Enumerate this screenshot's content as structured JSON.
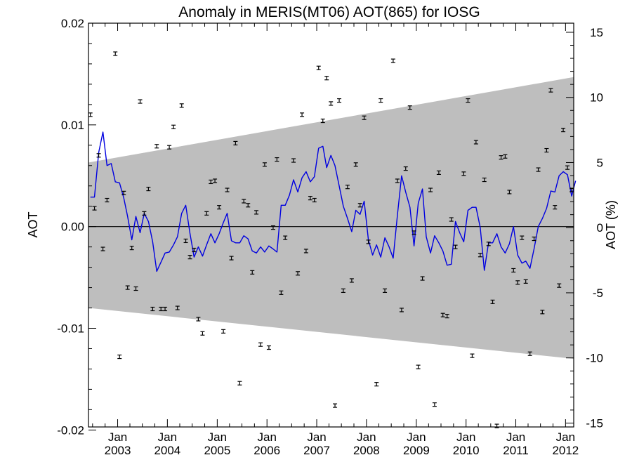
{
  "chart_data": {
    "type": "scatter",
    "title": "Anomaly in MERIS(MT06) AOT(865) for IOSG",
    "ylabel": "AOT",
    "ylabel_right": "AOT (%)",
    "xlim": [
      "2002-06-01",
      "2012-03-01"
    ],
    "ylim": [
      -0.0197,
      0.02
    ],
    "ylim_right": [
      -15.3,
      15.7
    ],
    "x_ticks": [
      {
        "date": "2003-01",
        "month": "Jan",
        "year": "2003"
      },
      {
        "date": "2004-01",
        "month": "Jan",
        "year": "2004"
      },
      {
        "date": "2005-01",
        "month": "Jan",
        "year": "2005"
      },
      {
        "date": "2006-01",
        "month": "Jan",
        "year": "2006"
      },
      {
        "date": "2007-01",
        "month": "Jan",
        "year": "2007"
      },
      {
        "date": "2008-01",
        "month": "Jan",
        "year": "2008"
      },
      {
        "date": "2009-01",
        "month": "Jan",
        "year": "2009"
      },
      {
        "date": "2010-01",
        "month": "Jan",
        "year": "2010"
      },
      {
        "date": "2011-01",
        "month": "Jan",
        "year": "2011"
      },
      {
        "date": "2012-01",
        "month": "Jan",
        "year": "2012"
      }
    ],
    "y_ticks": [
      {
        "value": 0.02,
        "label": "0.02"
      },
      {
        "value": 0.01,
        "label": "0.01"
      },
      {
        "value": 0.0,
        "label": "0.00"
      },
      {
        "value": -0.01,
        "label": "-0.01"
      },
      {
        "value": -0.02,
        "label": "-0.02"
      }
    ],
    "y_ticks_right": [
      {
        "value": 15,
        "label": "15"
      },
      {
        "value": 10,
        "label": "10"
      },
      {
        "value": 5,
        "label": "5"
      },
      {
        "value": 0,
        "label": "0"
      },
      {
        "value": -5,
        "label": "-5"
      },
      {
        "value": -10,
        "label": "-10"
      },
      {
        "value": -15,
        "label": "-15"
      }
    ],
    "band": {
      "x": [
        "2002-06-01",
        "2012-03-01"
      ],
      "upper": [
        0.0063,
        0.0147
      ],
      "lower": [
        -0.008,
        -0.013
      ],
      "color": "#bebebe"
    },
    "zero_line": true,
    "points": [
      {
        "x": "2002-06",
        "y": 0.011
      },
      {
        "x": "2002-07",
        "y": 0.0018
      },
      {
        "x": "2002-08",
        "y": 0.007
      },
      {
        "x": "2002-09",
        "y": -0.0022
      },
      {
        "x": "2002-10",
        "y": 0.0026
      },
      {
        "x": "2002-12",
        "y": 0.017
      },
      {
        "x": "2003-01",
        "y": -0.0128
      },
      {
        "x": "2003-02",
        "y": 0.0033
      },
      {
        "x": "2003-03",
        "y": -0.006
      },
      {
        "x": "2003-04",
        "y": -0.0021
      },
      {
        "x": "2003-05",
        "y": -0.0061
      },
      {
        "x": "2003-06",
        "y": 0.0123
      },
      {
        "x": "2003-07",
        "y": 0.0013
      },
      {
        "x": "2003-08",
        "y": 0.0037
      },
      {
        "x": "2003-09",
        "y": -0.0081
      },
      {
        "x": "2003-10",
        "y": 0.0079
      },
      {
        "x": "2003-11",
        "y": -0.0081
      },
      {
        "x": "2003-12",
        "y": -0.0081
      },
      {
        "x": "2004-01",
        "y": 0.0078
      },
      {
        "x": "2004-02",
        "y": 0.0098
      },
      {
        "x": "2004-03",
        "y": -0.008
      },
      {
        "x": "2004-04",
        "y": 0.0119
      },
      {
        "x": "2004-05",
        "y": -0.0014
      },
      {
        "x": "2004-06",
        "y": -0.003
      },
      {
        "x": "2004-07",
        "y": -0.0023
      },
      {
        "x": "2004-08",
        "y": -0.0091
      },
      {
        "x": "2004-09",
        "y": -0.0105
      },
      {
        "x": "2004-10",
        "y": 0.0013
      },
      {
        "x": "2004-11",
        "y": 0.0044
      },
      {
        "x": "2004-12",
        "y": 0.0045
      },
      {
        "x": "2005-01",
        "y": 0.0019
      },
      {
        "x": "2005-02",
        "y": -0.0103
      },
      {
        "x": "2005-03",
        "y": 0.0036
      },
      {
        "x": "2005-04",
        "y": -0.0031
      },
      {
        "x": "2005-05",
        "y": 0.0082
      },
      {
        "x": "2005-06",
        "y": -0.0154
      },
      {
        "x": "2005-07",
        "y": 0.0025
      },
      {
        "x": "2005-08",
        "y": 0.0021
      },
      {
        "x": "2005-09",
        "y": -0.0045
      },
      {
        "x": "2005-10",
        "y": 0.0014
      },
      {
        "x": "2005-11",
        "y": -0.0116
      },
      {
        "x": "2005-12",
        "y": 0.0061
      },
      {
        "x": "2006-01",
        "y": -0.0119
      },
      {
        "x": "2006-02",
        "y": -0.0001
      },
      {
        "x": "2006-03",
        "y": 0.0066
      },
      {
        "x": "2006-04",
        "y": -0.0065
      },
      {
        "x": "2006-05",
        "y": -0.0011
      },
      {
        "x": "2006-07",
        "y": 0.0065
      },
      {
        "x": "2006-08",
        "y": -0.0046
      },
      {
        "x": "2006-09",
        "y": 0.011
      },
      {
        "x": "2006-10",
        "y": -0.0024
      },
      {
        "x": "2006-11",
        "y": 0.0028
      },
      {
        "x": "2006-12",
        "y": 0.0026
      },
      {
        "x": "2007-01",
        "y": 0.0156
      },
      {
        "x": "2007-02",
        "y": 0.0104
      },
      {
        "x": "2007-03",
        "y": 0.0146
      },
      {
        "x": "2007-04",
        "y": 0.0121
      },
      {
        "x": "2007-05",
        "y": -0.0176
      },
      {
        "x": "2007-06",
        "y": 0.0124
      },
      {
        "x": "2007-07",
        "y": -0.0063
      },
      {
        "x": "2007-08",
        "y": 0.0039
      },
      {
        "x": "2007-09",
        "y": -0.0053
      },
      {
        "x": "2007-10",
        "y": 0.0061
      },
      {
        "x": "2007-11",
        "y": 0.0021
      },
      {
        "x": "2007-12",
        "y": 0.0107
      },
      {
        "x": "2008-01",
        "y": -0.0015
      },
      {
        "x": "2008-03",
        "y": -0.0155
      },
      {
        "x": "2008-04",
        "y": 0.0124
      },
      {
        "x": "2008-05",
        "y": -0.0063
      },
      {
        "x": "2008-07",
        "y": 0.0163
      },
      {
        "x": "2008-08",
        "y": 0.0045
      },
      {
        "x": "2008-09",
        "y": -0.0082
      },
      {
        "x": "2008-10",
        "y": 0.0057
      },
      {
        "x": "2008-11",
        "y": 0.0117
      },
      {
        "x": "2008-12",
        "y": -0.0006
      },
      {
        "x": "2009-01",
        "y": -0.0138
      },
      {
        "x": "2009-02",
        "y": -0.0051
      },
      {
        "x": "2009-04",
        "y": 0.0036
      },
      {
        "x": "2009-05",
        "y": -0.0175
      },
      {
        "x": "2009-06",
        "y": 0.0053
      },
      {
        "x": "2009-07",
        "y": -0.0087
      },
      {
        "x": "2009-08",
        "y": -0.0088
      },
      {
        "x": "2009-09",
        "y": 0.0007
      },
      {
        "x": "2009-10",
        "y": -0.002
      },
      {
        "x": "2009-12",
        "y": 0.0052
      },
      {
        "x": "2010-01",
        "y": 0.0124
      },
      {
        "x": "2010-02",
        "y": -0.0127
      },
      {
        "x": "2010-03",
        "y": 0.0083
      },
      {
        "x": "2010-04",
        "y": -0.0028
      },
      {
        "x": "2010-05",
        "y": 0.0046
      },
      {
        "x": "2010-06",
        "y": -0.0017
      },
      {
        "x": "2010-07",
        "y": -0.0074
      },
      {
        "x": "2010-08",
        "y": -0.0196
      },
      {
        "x": "2010-09",
        "y": 0.0068
      },
      {
        "x": "2010-10",
        "y": 0.0069
      },
      {
        "x": "2010-11",
        "y": 0.0034
      },
      {
        "x": "2010-12",
        "y": -0.0043
      },
      {
        "x": "2011-01",
        "y": -0.0055
      },
      {
        "x": "2011-02",
        "y": -0.0011
      },
      {
        "x": "2011-03",
        "y": -0.0054
      },
      {
        "x": "2011-04",
        "y": -0.0125
      },
      {
        "x": "2011-05",
        "y": -0.0012
      },
      {
        "x": "2011-06",
        "y": 0.0056
      },
      {
        "x": "2011-07",
        "y": -0.0084
      },
      {
        "x": "2011-08",
        "y": 0.0075
      },
      {
        "x": "2011-09",
        "y": 0.0134
      },
      {
        "x": "2011-10",
        "y": 0.0019
      },
      {
        "x": "2011-11",
        "y": -0.0058
      },
      {
        "x": "2011-12",
        "y": 0.0095
      },
      {
        "x": "2012-01",
        "y": 0.0058
      },
      {
        "x": "2012-02",
        "y": 0.0036
      }
    ],
    "line": {
      "color": "#0000e0",
      "points": [
        {
          "x": "2002-06",
          "y": 0.0029
        },
        {
          "x": "2002-07",
          "y": 0.0029
        },
        {
          "x": "2002-08",
          "y": 0.0073
        },
        {
          "x": "2002-09",
          "y": 0.0093
        },
        {
          "x": "2002-10",
          "y": 0.006
        },
        {
          "x": "2002-11",
          "y": 0.0062
        },
        {
          "x": "2002-12",
          "y": 0.0044
        },
        {
          "x": "2003-01",
          "y": 0.0043
        },
        {
          "x": "2003-02",
          "y": 0.0028
        },
        {
          "x": "2003-03",
          "y": 0.001
        },
        {
          "x": "2003-04",
          "y": -0.0013
        },
        {
          "x": "2003-05",
          "y": 0.001
        },
        {
          "x": "2003-06",
          "y": -0.0006
        },
        {
          "x": "2003-07",
          "y": 0.0013
        },
        {
          "x": "2003-08",
          "y": 0.0005
        },
        {
          "x": "2003-09",
          "y": -0.0015
        },
        {
          "x": "2003-10",
          "y": -0.0044
        },
        {
          "x": "2003-11",
          "y": -0.0035
        },
        {
          "x": "2003-12",
          "y": -0.0026
        },
        {
          "x": "2004-01",
          "y": -0.0025
        },
        {
          "x": "2004-02",
          "y": -0.0018
        },
        {
          "x": "2004-03",
          "y": -0.001
        },
        {
          "x": "2004-04",
          "y": 0.0013
        },
        {
          "x": "2004-05",
          "y": 0.0021
        },
        {
          "x": "2004-06",
          "y": -0.0007
        },
        {
          "x": "2004-07",
          "y": -0.003
        },
        {
          "x": "2004-08",
          "y": -0.002
        },
        {
          "x": "2004-09",
          "y": -0.0029
        },
        {
          "x": "2004-10",
          "y": -0.0018
        },
        {
          "x": "2004-11",
          "y": -0.0007
        },
        {
          "x": "2004-12",
          "y": -0.0016
        },
        {
          "x": "2005-01",
          "y": -0.0007
        },
        {
          "x": "2005-02",
          "y": 0.0004
        },
        {
          "x": "2005-03",
          "y": 0.0013
        },
        {
          "x": "2005-04",
          "y": -0.0014
        },
        {
          "x": "2005-05",
          "y": -0.0016
        },
        {
          "x": "2005-06",
          "y": -0.0016
        },
        {
          "x": "2005-07",
          "y": -0.0009
        },
        {
          "x": "2005-08",
          "y": -0.0012
        },
        {
          "x": "2005-09",
          "y": -0.0024
        },
        {
          "x": "2005-10",
          "y": -0.0026
        },
        {
          "x": "2005-11",
          "y": -0.002
        },
        {
          "x": "2005-12",
          "y": -0.0025
        },
        {
          "x": "2006-01",
          "y": -0.0019
        },
        {
          "x": "2006-02",
          "y": -0.0022
        },
        {
          "x": "2006-03",
          "y": -0.0025
        },
        {
          "x": "2006-04",
          "y": 0.0021
        },
        {
          "x": "2006-05",
          "y": 0.0021
        },
        {
          "x": "2006-06",
          "y": 0.0031
        },
        {
          "x": "2006-07",
          "y": 0.0046
        },
        {
          "x": "2006-08",
          "y": 0.0034
        },
        {
          "x": "2006-09",
          "y": 0.0048
        },
        {
          "x": "2006-10",
          "y": 0.0054
        },
        {
          "x": "2006-11",
          "y": 0.0044
        },
        {
          "x": "2006-12",
          "y": 0.0049
        },
        {
          "x": "2007-01",
          "y": 0.0077
        },
        {
          "x": "2007-02",
          "y": 0.0079
        },
        {
          "x": "2007-03",
          "y": 0.0058
        },
        {
          "x": "2007-04",
          "y": 0.007
        },
        {
          "x": "2007-05",
          "y": 0.006
        },
        {
          "x": "2007-06",
          "y": 0.004
        },
        {
          "x": "2007-07",
          "y": 0.002
        },
        {
          "x": "2007-08",
          "y": 0.0008
        },
        {
          "x": "2007-09",
          "y": -0.0005
        },
        {
          "x": "2007-10",
          "y": 0.0016
        },
        {
          "x": "2007-11",
          "y": 0.0012
        },
        {
          "x": "2007-12",
          "y": 0.0025
        },
        {
          "x": "2008-01",
          "y": -0.0013
        },
        {
          "x": "2008-02",
          "y": -0.0028
        },
        {
          "x": "2008-03",
          "y": -0.0018
        },
        {
          "x": "2008-04",
          "y": -0.003
        },
        {
          "x": "2008-05",
          "y": -0.0011
        },
        {
          "x": "2008-06",
          "y": -0.002
        },
        {
          "x": "2008-07",
          "y": -0.0031
        },
        {
          "x": "2008-08",
          "y": 0.0011
        },
        {
          "x": "2008-09",
          "y": 0.005
        },
        {
          "x": "2008-10",
          "y": 0.0034
        },
        {
          "x": "2008-11",
          "y": 0.0019
        },
        {
          "x": "2008-12",
          "y": -0.0019
        },
        {
          "x": "2009-01",
          "y": 0.0023
        },
        {
          "x": "2009-02",
          "y": 0.0037
        },
        {
          "x": "2009-03",
          "y": -0.001
        },
        {
          "x": "2009-04",
          "y": -0.0026
        },
        {
          "x": "2009-05",
          "y": -0.0009
        },
        {
          "x": "2009-06",
          "y": -0.0016
        },
        {
          "x": "2009-07",
          "y": -0.0024
        },
        {
          "x": "2009-08",
          "y": -0.0038
        },
        {
          "x": "2009-09",
          "y": -0.0037
        },
        {
          "x": "2009-10",
          "y": 0.0005
        },
        {
          "x": "2009-11",
          "y": -0.0006
        },
        {
          "x": "2009-12",
          "y": -0.0015
        },
        {
          "x": "2010-01",
          "y": 0.0016
        },
        {
          "x": "2010-02",
          "y": 0.0019
        },
        {
          "x": "2010-03",
          "y": 0.0019
        },
        {
          "x": "2010-04",
          "y": -0.0001
        },
        {
          "x": "2010-05",
          "y": -0.0043
        },
        {
          "x": "2010-06",
          "y": -0.0016
        },
        {
          "x": "2010-07",
          "y": -0.0016
        },
        {
          "x": "2010-08",
          "y": -0.0007
        },
        {
          "x": "2010-09",
          "y": -0.002
        },
        {
          "x": "2010-10",
          "y": -0.0026
        },
        {
          "x": "2010-11",
          "y": -0.0017
        },
        {
          "x": "2010-12",
          "y": 0.0
        },
        {
          "x": "2011-01",
          "y": -0.0028
        },
        {
          "x": "2011-02",
          "y": -0.0036
        },
        {
          "x": "2011-03",
          "y": -0.0034
        },
        {
          "x": "2011-04",
          "y": -0.0041
        },
        {
          "x": "2011-05",
          "y": -0.0022
        },
        {
          "x": "2011-06",
          "y": 0.0
        },
        {
          "x": "2011-07",
          "y": 0.0008
        },
        {
          "x": "2011-08",
          "y": 0.0018
        },
        {
          "x": "2011-09",
          "y": 0.0035
        },
        {
          "x": "2011-10",
          "y": 0.0034
        },
        {
          "x": "2011-11",
          "y": 0.005
        },
        {
          "x": "2011-12",
          "y": 0.0054
        },
        {
          "x": "2012-01",
          "y": 0.0051
        },
        {
          "x": "2012-02",
          "y": 0.003
        },
        {
          "x": "2012-03",
          "y": 0.0045
        }
      ]
    }
  }
}
